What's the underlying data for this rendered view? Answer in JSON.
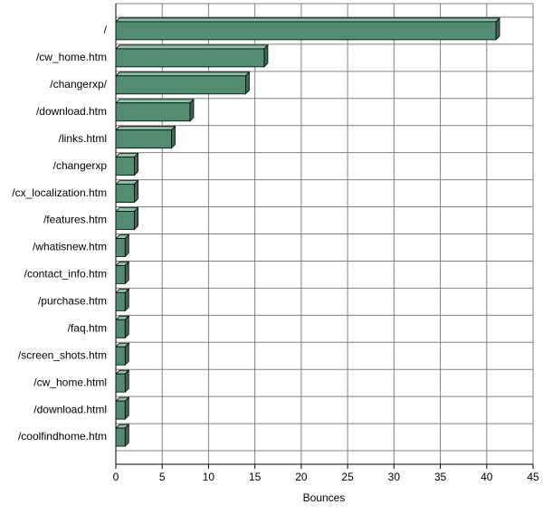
{
  "chart_data": {
    "type": "bar",
    "orientation": "horizontal",
    "x_label": "Bounces",
    "categories": [
      "/",
      "/cw_home.htm",
      "/changerxp/",
      "/download.htm",
      "/links.html",
      "/changerxp",
      "/cx_localization.htm",
      "/features.htm",
      "/whatisnew.htm",
      "/contact_info.htm",
      "/purchase.htm",
      "/faq.htm",
      "/screen_shots.htm",
      "/cw_home.html",
      "/download.html",
      "/coolfindhome.htm"
    ],
    "values": [
      41,
      16,
      14,
      8,
      6,
      2,
      2,
      2,
      1,
      1,
      1,
      1,
      1,
      1,
      1,
      1
    ],
    "color": "#548c72",
    "xlim": [
      0,
      45
    ],
    "xticks": [
      0,
      5,
      10,
      15,
      20,
      25,
      30,
      35,
      40,
      45
    ],
    "grid": true
  }
}
